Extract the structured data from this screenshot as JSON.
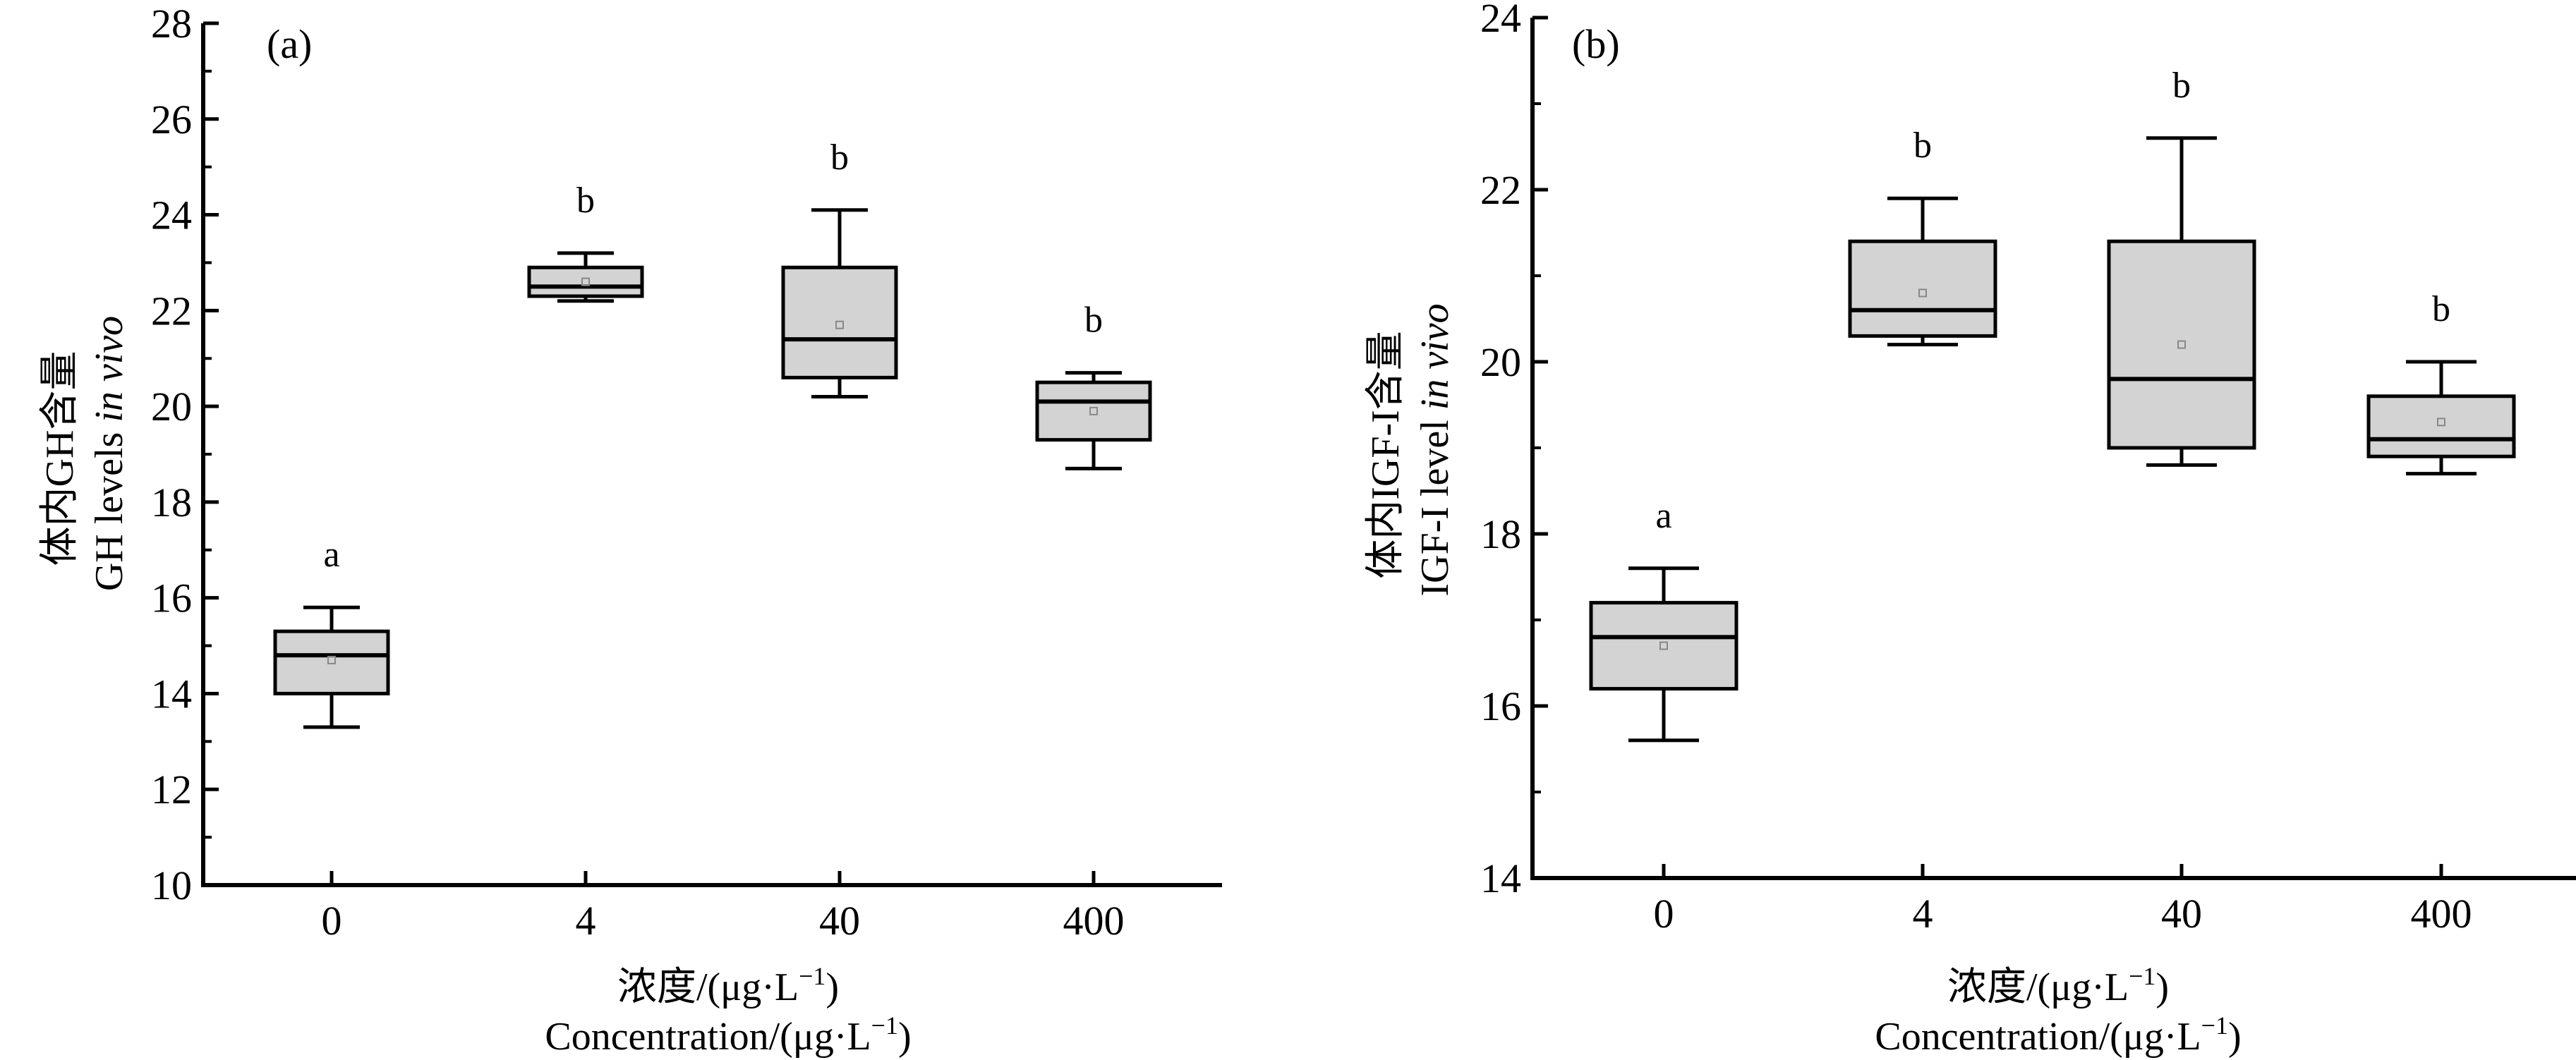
{
  "chart_data": [
    {
      "type": "box",
      "panel_label": "(a)",
      "ylabel_cn": "体内GH含量",
      "ylabel_en_prefix": "GH levels ",
      "ylabel_en_italic": "in vivo",
      "xlabel_cn": "浓度/(μg·L",
      "xlabel_en": "Concentration/(μg·L",
      "xlabel_sup": "−1",
      "xlabel_close": ")",
      "categories": [
        "0",
        "4",
        "40",
        "400"
      ],
      "ylim": [
        10,
        28
      ],
      "yticks": [
        10,
        12,
        14,
        16,
        18,
        20,
        22,
        24,
        26,
        28
      ],
      "boxes": [
        {
          "category": "0",
          "whisker_low": 13.3,
          "q1": 14.0,
          "median": 14.8,
          "q3": 15.3,
          "whisker_high": 15.8,
          "mean": 14.7,
          "letter": "a"
        },
        {
          "category": "4",
          "whisker_low": 22.2,
          "q1": 22.3,
          "median": 22.5,
          "q3": 22.9,
          "whisker_high": 23.2,
          "mean": 22.6,
          "letter": "b"
        },
        {
          "category": "40",
          "whisker_low": 20.2,
          "q1": 20.6,
          "median": 21.4,
          "q3": 22.9,
          "whisker_high": 24.1,
          "mean": 21.7,
          "letter": "b"
        },
        {
          "category": "400",
          "whisker_low": 18.7,
          "q1": 19.3,
          "median": 20.1,
          "q3": 20.5,
          "whisker_high": 20.7,
          "mean": 19.9,
          "letter": "b"
        }
      ]
    },
    {
      "type": "box",
      "panel_label": "(b)",
      "ylabel_cn": "体内IGF-I含量",
      "ylabel_en_prefix": "IGF-I level ",
      "ylabel_en_italic": "in vivo",
      "xlabel_cn": "浓度/(μg·L",
      "xlabel_en": "Concentration/(μg·L",
      "xlabel_sup": "−1",
      "xlabel_close": ")",
      "categories": [
        "0",
        "4",
        "40",
        "400"
      ],
      "ylim": [
        14,
        24
      ],
      "yticks": [
        14,
        16,
        18,
        20,
        22,
        24
      ],
      "boxes": [
        {
          "category": "0",
          "whisker_low": 15.6,
          "q1": 16.2,
          "median": 16.8,
          "q3": 17.2,
          "whisker_high": 17.6,
          "mean": 16.7,
          "letter": "a"
        },
        {
          "category": "4",
          "whisker_low": 20.2,
          "q1": 20.3,
          "median": 20.6,
          "q3": 21.4,
          "whisker_high": 21.9,
          "mean": 20.8,
          "letter": "b"
        },
        {
          "category": "40",
          "whisker_low": 18.8,
          "q1": 19.0,
          "median": 19.8,
          "q3": 21.4,
          "whisker_high": 22.6,
          "mean": 20.2,
          "letter": "b"
        },
        {
          "category": "400",
          "whisker_low": 18.7,
          "q1": 18.9,
          "median": 19.1,
          "q3": 19.6,
          "whisker_high": 20.0,
          "mean": 19.3,
          "letter": "b"
        }
      ]
    }
  ],
  "colors": {
    "box_fill": "#d3d3d3",
    "stroke": "#000000",
    "mean_marker": "#888888"
  }
}
